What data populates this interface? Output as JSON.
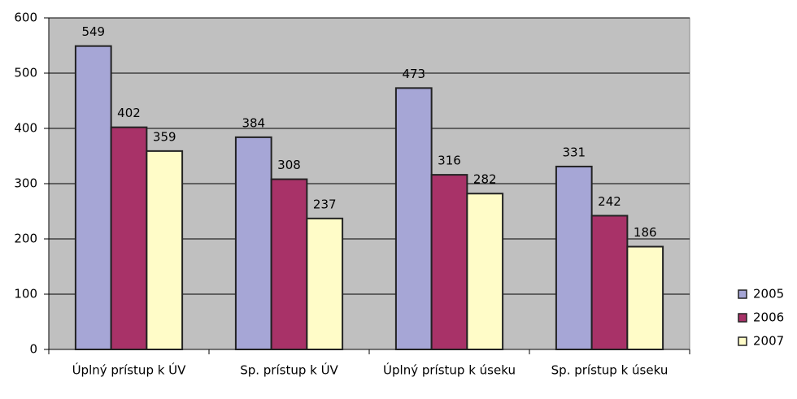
{
  "chart_data": {
    "type": "bar",
    "categories": [
      "Úplný prístup k ÚV",
      "Sp. prístup k ÚV",
      "Úplný prístup k úseku",
      "Sp. prístup k úseku"
    ],
    "series": [
      {
        "name": "2005",
        "color": "#a6a6d6",
        "values": [
          549,
          384,
          473,
          331
        ]
      },
      {
        "name": "2006",
        "color": "#a83268",
        "values": [
          402,
          308,
          316,
          242
        ]
      },
      {
        "name": "2007",
        "color": "#fffcc8",
        "values": [
          359,
          237,
          282,
          186
        ]
      }
    ],
    "ylim": [
      0,
      600
    ],
    "yticks": [
      0,
      100,
      200,
      300,
      400,
      500,
      600
    ],
    "grid": true,
    "legend": "right",
    "plot_background": "#c0c0c0"
  }
}
